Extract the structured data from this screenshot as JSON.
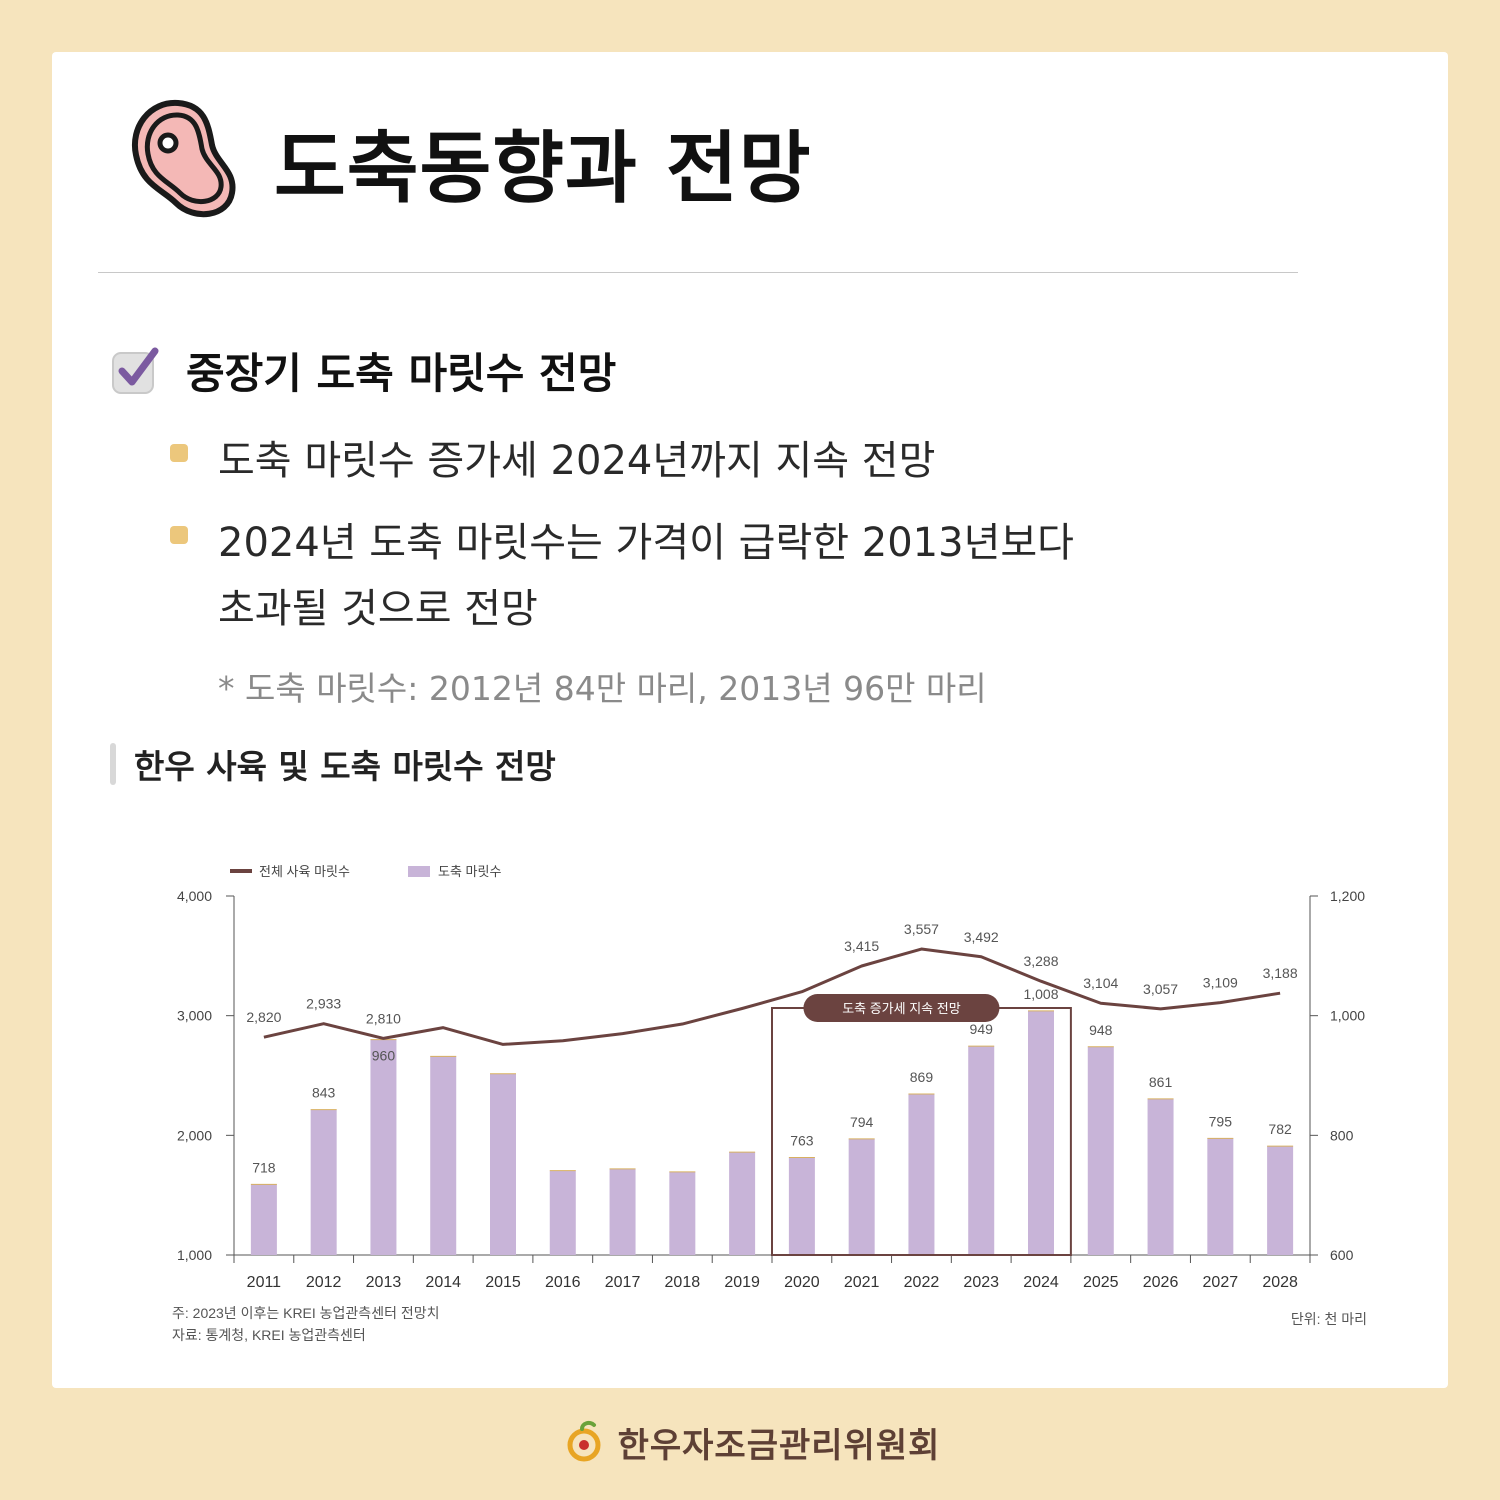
{
  "header": {
    "title": "도축동향과 전망"
  },
  "section": {
    "title": "중장기 도축 마릿수 전망"
  },
  "bullets": [
    {
      "line1": "도축 마릿수 증가세 2024년까지 지속 전망"
    },
    {
      "line1": "2024년 도축 마릿수는 가격이 급락한 2013년보다",
      "line2": "초과될 것으로 전망"
    }
  ],
  "note": "* 도축 마릿수: 2012년 84만 마리, 2013년 96만 마리",
  "chart_title": "한우 사육 및 도축 마릿수 전망",
  "chart_data": {
    "type": "bar",
    "categories": [
      "2011",
      "2012",
      "2013",
      "2014",
      "2015",
      "2016",
      "2017",
      "2018",
      "2019",
      "2020",
      "2021",
      "2022",
      "2023",
      "2024",
      "2025",
      "2026",
      "2027",
      "2028"
    ],
    "series": [
      {
        "name": "전체 사육 마릿수",
        "type": "line",
        "axis": "left",
        "color": "#6b4340",
        "values": [
          2820,
          2933,
          2810,
          2900,
          2760,
          2790,
          2850,
          2930,
          3060,
          3200,
          3415,
          3557,
          3492,
          3288,
          3104,
          3057,
          3109,
          3188
        ],
        "labels": [
          "2,820",
          "2,933",
          "2,810",
          "",
          "",
          "",
          "",
          "",
          "",
          "",
          "3,415",
          "3,557",
          "3,492",
          "3,288",
          "3,104",
          "3,057",
          "3,109",
          "3,188"
        ]
      },
      {
        "name": "도축 마릿수",
        "type": "bar",
        "axis": "right",
        "color": "#c8b4d8",
        "values": [
          718,
          843,
          960,
          932,
          903,
          741,
          744,
          739,
          772,
          763,
          794,
          869,
          949,
          1008,
          948,
          861,
          795,
          782
        ],
        "labels": [
          "718",
          "843",
          "960",
          "",
          "",
          "",
          "",
          "",
          "",
          "763",
          "794",
          "869",
          "949",
          "1,008",
          "948",
          "861",
          "795",
          "782"
        ]
      }
    ],
    "yleft": {
      "lim": [
        1000,
        4000
      ],
      "ticks": [
        "1,000",
        "2,000",
        "3,000",
        "4,000"
      ]
    },
    "yright": {
      "lim": [
        600,
        1200
      ],
      "ticks": [
        "600",
        "800",
        "1,000",
        "1,200"
      ]
    },
    "annotation": {
      "text": "도축 증가세 지속 전망",
      "from": "2020",
      "to": "2024"
    },
    "legend_position": "top-left",
    "footnote1": "주: 2023년 이후는 KREI 농업관측센터 전망치",
    "footnote2": "자료: 통계청, KREI 농업관측센터",
    "unit": "단위: 천 마리"
  },
  "footer": {
    "org": "한우자조금관리위원회"
  },
  "colors": {
    "background": "#f6e4bd",
    "accent": "#ecc77c",
    "bar": "#c8b4d8",
    "line": "#6b4340"
  }
}
